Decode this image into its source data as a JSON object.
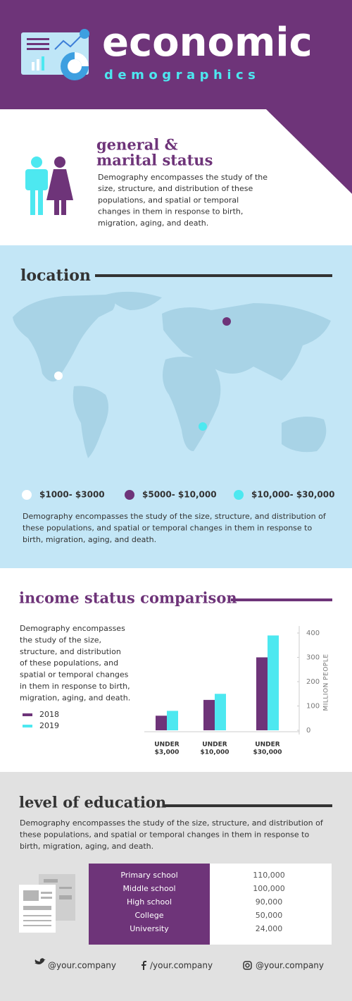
{
  "header": {
    "title": "economic",
    "subtitle": "demographics"
  },
  "general": {
    "title": [
      "general &",
      "marital status"
    ],
    "text": [
      "Demography encompasses the study of the",
      "size, structure, and distribution of these",
      "populations, and spatial or temporal",
      "changes in them in response to birth,",
      "migration, aging, and death."
    ]
  },
  "location": {
    "title": "location",
    "legend": [
      {
        "label": "$1000- $3000",
        "color": "#ffffff"
      },
      {
        "label": "$5000- $10,000",
        "color": "#6e3479"
      },
      {
        "label": "$10,000- $30,000",
        "color": "#4de8f0"
      }
    ],
    "text": [
      "Demography encompasses the study of the size, structure, and distribution of",
      "these populations, and spatial or temporal changes in them in response to",
      "birth, migration, aging, and death."
    ]
  },
  "income": {
    "title": "income status comparison",
    "text": [
      "Demography encompasses",
      "the study of the size,",
      "structure, and distribution",
      "of these populations, and",
      "spatial or temporal changes",
      "in them in response to birth,",
      "migration, aging, and death."
    ],
    "chart": {
      "type": "bar",
      "categories": [
        [
          "UNDER",
          "$3,000"
        ],
        [
          "UNDER",
          "$10,000"
        ],
        [
          "UNDER",
          "$30,000"
        ]
      ],
      "series": [
        {
          "name": "2018",
          "color": "#6e3479",
          "values": [
            60,
            125,
            300
          ]
        },
        {
          "name": "2019",
          "color": "#4de8f0",
          "values": [
            80,
            150,
            390
          ]
        }
      ],
      "ylim": [
        0,
        400
      ],
      "yticks": [
        0,
        100,
        200,
        300,
        400
      ],
      "ylabel": "MILLION PEOPLE"
    }
  },
  "education": {
    "title": "level of education",
    "text": [
      "Demography encompasses the study of the size, structure, and distribution of",
      "these populations, and spatial or temporal changes in them in response to",
      "birth, migration, aging, and death."
    ],
    "table": {
      "rows": [
        [
          "Primary school",
          "110,000"
        ],
        [
          "Middle school",
          "100,000"
        ],
        [
          "High school",
          "90,000"
        ],
        [
          "College",
          "50,000"
        ],
        [
          "University",
          "24,000"
        ]
      ]
    }
  },
  "footer": {
    "links": [
      "@your.company",
      "/your.company",
      "@your.company"
    ]
  }
}
